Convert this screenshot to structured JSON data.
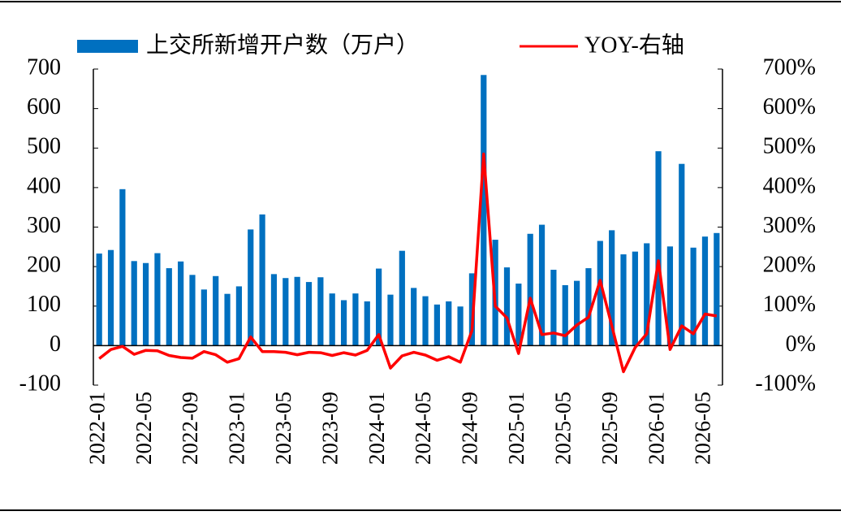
{
  "chart_data": {
    "type": "bar_line",
    "categories": [
      "2022-01",
      null,
      null,
      null,
      "2022-05",
      null,
      null,
      null,
      "2022-09",
      null,
      null,
      null,
      "2023-01",
      null,
      null,
      null,
      "2023-05",
      null,
      null,
      null,
      "2023-09",
      null,
      null,
      null,
      "2024-01",
      null,
      null,
      null,
      "2024-05",
      null,
      null,
      null,
      "2024-09",
      null,
      null,
      null,
      "2025-01",
      null,
      null,
      null,
      "2025-05",
      null,
      null,
      null,
      "2025-09",
      null,
      null,
      null,
      "2026-01",
      null,
      null,
      null,
      "2026-05",
      null
    ],
    "series": [
      {
        "name": "上交所新增开户数（万户）",
        "type": "bar",
        "color": "#0070c0",
        "values": [
          233,
          242,
          396,
          214,
          209,
          234,
          196,
          213,
          179,
          142,
          176,
          131,
          150,
          294,
          332,
          181,
          171,
          174,
          161,
          173,
          132,
          115,
          132,
          112,
          195,
          129,
          240,
          146,
          125,
          104,
          112,
          99,
          183,
          685,
          268,
          198,
          157,
          283,
          306,
          192,
          153,
          164,
          196,
          265,
          292,
          231,
          238,
          259,
          492,
          251,
          460,
          248,
          276,
          285
        ]
      },
      {
        "name": "YOY-右轴",
        "type": "line",
        "axis": "y2",
        "color": "#ff0000",
        "values": [
          -33,
          -10,
          -2,
          -22,
          -12,
          -13,
          -25,
          -30,
          -32,
          -15,
          -23,
          -42,
          -33,
          22,
          -15,
          -15,
          -17,
          -23,
          -17,
          -18,
          -25,
          -18,
          -24,
          -12,
          28,
          -57,
          -26,
          -17,
          -24,
          -37,
          -28,
          -42,
          38,
          485,
          100,
          70,
          -20,
          120,
          28,
          32,
          25,
          52,
          72,
          165,
          50,
          -66,
          -5,
          30,
          215,
          -10,
          50,
          30,
          80,
          75
        ]
      }
    ],
    "ylim": [
      -100,
      700
    ],
    "yticks": [
      -100,
      0,
      100,
      200,
      300,
      400,
      500,
      600,
      700
    ],
    "y2lim": [
      -100,
      700
    ],
    "y2ticks": [
      {
        "value": -100,
        "label": "-100%"
      },
      {
        "value": 0,
        "label": "0%"
      },
      {
        "value": 100,
        "label": "100%"
      },
      {
        "value": 200,
        "label": "200%"
      },
      {
        "value": 300,
        "label": "300%"
      },
      {
        "value": 400,
        "label": "400%"
      },
      {
        "value": 500,
        "label": "500%"
      },
      {
        "value": 600,
        "label": "600%"
      },
      {
        "value": 700,
        "label": "700%"
      }
    ],
    "grid": false
  }
}
